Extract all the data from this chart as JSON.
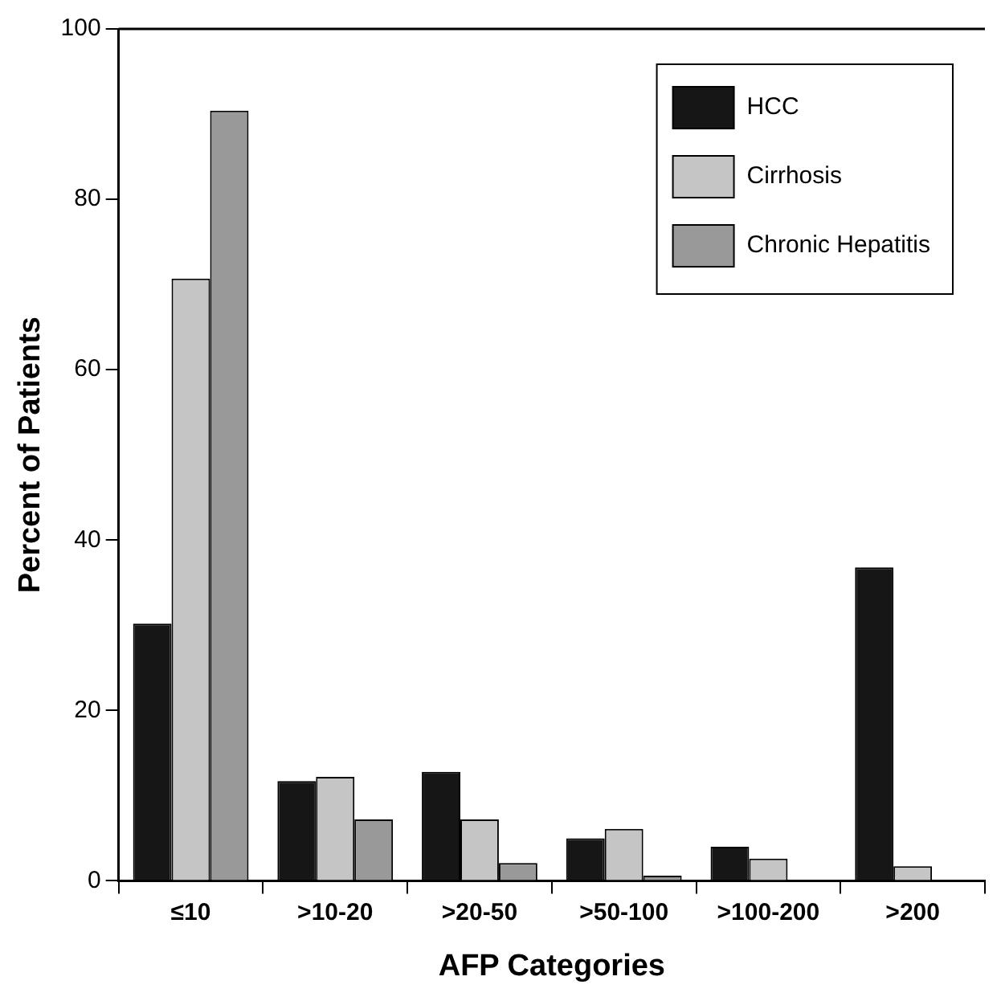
{
  "chart_data": {
    "type": "bar",
    "xlabel": "AFP Categories",
    "ylabel": "Percent of Patients",
    "categories": [
      "≤10",
      ">10-20",
      ">20-50",
      ">50-100",
      ">100-200",
      ">200"
    ],
    "series": [
      {
        "name": "HCC",
        "color": "#161616",
        "values": [
          30.2,
          11.7,
          12.8,
          5.0,
          4.0,
          36.8
        ]
      },
      {
        "name": "Cirrhosis",
        "color": "#c4c5c4",
        "values": [
          70.7,
          12.2,
          7.2,
          6.1,
          2.6,
          1.7
        ]
      },
      {
        "name": "Chronic Hepatitis",
        "color": "#999999",
        "values": [
          90.4,
          7.2,
          2.1,
          0.6,
          null,
          null
        ]
      }
    ],
    "ylim": [
      0,
      100
    ],
    "yticks": [
      0,
      20,
      40,
      60,
      80,
      100
    ],
    "grid": false,
    "legend": "top right"
  }
}
